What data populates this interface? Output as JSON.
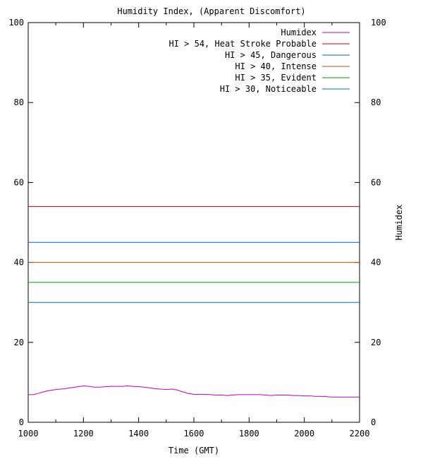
{
  "chart_data": {
    "type": "line",
    "title": "Humidity Index, (Apparent Discomfort)",
    "xlabel": "Time (GMT)",
    "ylabel_right": "Humidex",
    "xlim": [
      1000,
      2200
    ],
    "ylim": [
      0,
      100
    ],
    "x_ticks": [
      1000,
      1200,
      1400,
      1600,
      1800,
      2000,
      2200
    ],
    "y_ticks": [
      0,
      20,
      40,
      60,
      80,
      100
    ],
    "legend_position": "top-right",
    "grid": false,
    "series": [
      {
        "name": "Humidex",
        "color": "#c000c0",
        "x": [
          1000,
          1020,
          1040,
          1060,
          1080,
          1100,
          1120,
          1140,
          1160,
          1180,
          1200,
          1220,
          1240,
          1260,
          1280,
          1300,
          1320,
          1340,
          1360,
          1380,
          1400,
          1420,
          1440,
          1460,
          1480,
          1500,
          1520,
          1540,
          1560,
          1580,
          1600,
          1620,
          1640,
          1660,
          1680,
          1700,
          1720,
          1740,
          1760,
          1780,
          1800,
          1820,
          1840,
          1860,
          1880,
          1900,
          1920,
          1940,
          1960,
          1980,
          2000,
          2020,
          2040,
          2060,
          2080,
          2100,
          2120,
          2140,
          2160,
          2180,
          2200
        ],
        "y": [
          6.9,
          6.9,
          7.3,
          7.7,
          8.0,
          8.2,
          8.3,
          8.5,
          8.7,
          8.9,
          9.1,
          9.0,
          8.8,
          8.8,
          8.9,
          9.0,
          9.0,
          9.0,
          9.1,
          9.0,
          8.9,
          8.8,
          8.6,
          8.4,
          8.3,
          8.2,
          8.3,
          8.1,
          7.6,
          7.2,
          7.0,
          7.0,
          7.0,
          6.9,
          6.8,
          6.8,
          6.7,
          6.8,
          6.9,
          6.9,
          6.9,
          6.9,
          6.9,
          6.8,
          6.7,
          6.8,
          6.8,
          6.8,
          6.7,
          6.7,
          6.6,
          6.6,
          6.5,
          6.5,
          6.4,
          6.3,
          6.3,
          6.3,
          6.3,
          6.3,
          6.3
        ]
      },
      {
        "name": "HI > 54, Heat Stroke Probable",
        "color": "#cc0000",
        "x": [
          1000,
          2200
        ],
        "y": [
          54,
          54
        ]
      },
      {
        "name": "HI > 45, Dangerous",
        "color": "#0060cc",
        "x": [
          1000,
          2200
        ],
        "y": [
          45,
          45
        ]
      },
      {
        "name": "HI > 40, Intense",
        "color": "#cc5000",
        "x": [
          1000,
          2200
        ],
        "y": [
          40,
          40
        ]
      },
      {
        "name": "HI > 35, Evident",
        "color": "#00a000",
        "x": [
          1000,
          2200
        ],
        "y": [
          35,
          35
        ]
      },
      {
        "name": "HI > 30, Noticeable",
        "color": "#0070c0",
        "x": [
          1000,
          2200
        ],
        "y": [
          30,
          30
        ]
      }
    ]
  }
}
